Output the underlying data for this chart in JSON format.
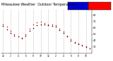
{
  "background_color": "#ffffff",
  "grid_color": "#bbbbbb",
  "temp_color": "#000000",
  "heat_color": "#ff0000",
  "legend_temp_color": "#0000cc",
  "legend_heat_color": "#ff0000",
  "ylim": [
    20,
    90
  ],
  "yticks": [
    30,
    40,
    50,
    60,
    70,
    80
  ],
  "ytick_labels": [
    "30",
    "40",
    "50",
    "60",
    "70",
    "80"
  ],
  "temp_data": [
    [
      0,
      63
    ],
    [
      1,
      58
    ],
    [
      2,
      52
    ],
    [
      3,
      48
    ],
    [
      4,
      46
    ],
    [
      5,
      44
    ],
    [
      6,
      48
    ],
    [
      7,
      55
    ],
    [
      8,
      60
    ],
    [
      9,
      64
    ],
    [
      10,
      66
    ],
    [
      11,
      65
    ],
    [
      12,
      64
    ],
    [
      13,
      63
    ],
    [
      14,
      62
    ],
    [
      15,
      57
    ],
    [
      16,
      52
    ],
    [
      17,
      46
    ],
    [
      18,
      40
    ],
    [
      19,
      36
    ],
    [
      20,
      34
    ],
    [
      21,
      32
    ],
    [
      22,
      30
    ],
    [
      23,
      28
    ]
  ],
  "heat_data": [
    [
      0,
      65
    ],
    [
      1,
      62
    ],
    [
      2,
      55
    ],
    [
      3,
      50
    ],
    [
      4,
      47
    ],
    [
      5,
      43
    ],
    [
      6,
      50
    ],
    [
      7,
      59
    ],
    [
      8,
      65
    ],
    [
      9,
      69
    ],
    [
      10,
      70
    ],
    [
      11,
      68
    ],
    [
      12,
      66
    ],
    [
      13,
      65
    ],
    [
      14,
      64
    ],
    [
      15,
      59
    ],
    [
      16,
      54
    ],
    [
      17,
      48
    ],
    [
      18,
      42
    ],
    [
      19,
      37
    ],
    [
      20,
      35
    ],
    [
      21,
      33
    ],
    [
      22,
      31
    ],
    [
      23,
      27
    ]
  ],
  "xtick_positions": [
    0,
    2,
    4,
    6,
    8,
    10,
    12,
    14,
    16,
    18,
    20,
    22
  ],
  "xtick_labels": [
    "12",
    "2",
    "4",
    "6",
    "8",
    "10",
    "12",
    "2",
    "4",
    "6",
    "8",
    "10"
  ],
  "vgrid_positions": [
    0,
    2,
    4,
    6,
    8,
    10,
    12,
    14,
    16,
    18,
    20,
    22
  ],
  "title_text": "Milwaukee Weather  Outdoor Temperature",
  "title_fontsize": 3.5
}
